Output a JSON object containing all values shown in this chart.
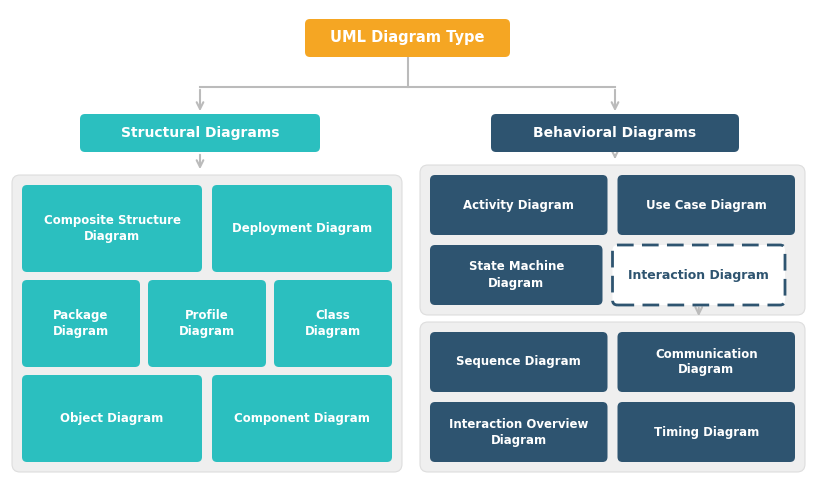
{
  "title": "UML Diagram Type",
  "title_bg": "#F5A623",
  "structural_label": "Structural Diagrams",
  "behavioral_label": "Behavioral Diagrams",
  "teal_color": "#2BBFBF",
  "dark_color": "#2E5470",
  "interaction_label": "Interaction Diagram",
  "bg_panel_color": "#EFEFEF",
  "connector_color": "#BBBBBB",
  "fig_w": 815,
  "fig_h": 490
}
